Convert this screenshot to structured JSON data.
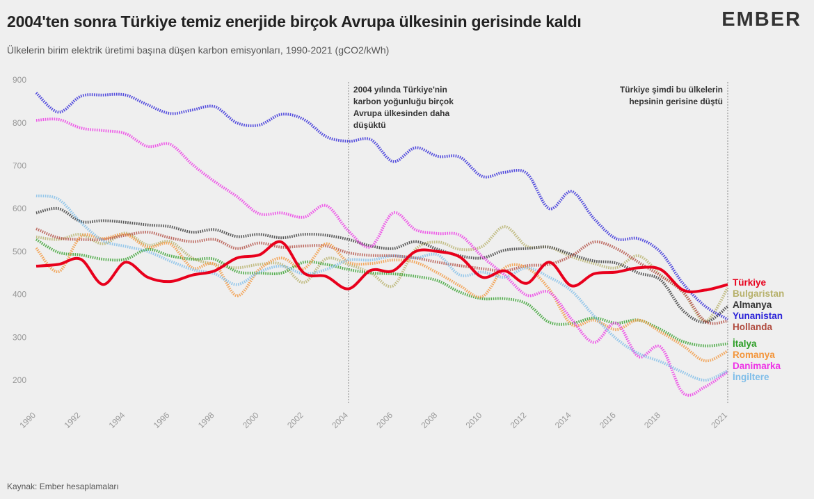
{
  "header": {
    "title": "2004'ten sonra Türkiye temiz enerjide birçok Avrupa ülkesinin gerisinde kaldı",
    "subtitle": "Ülkelerin birim elektrik üretimi başına düşen karbon emisyonları, 1990-2021 (gCO2/kWh)",
    "logo": "EMBER"
  },
  "footer": {
    "source": "Kaynak: Ember hesaplamaları"
  },
  "annotations": {
    "left": [
      "2004 yılında Türkiye'nin",
      "karbon yoğunluğu birçok",
      "Avrupa ülkesinden daha",
      "düşüktü"
    ],
    "right": [
      "Türkiye şimdi bu ülkelerin",
      "hepsinin gerisine düştü"
    ]
  },
  "chart_data": {
    "type": "line",
    "title": "2004'ten sonra Türkiye temiz enerjide birçok Avrupa ülkesinin gerisinde kaldı",
    "ylabel": "gCO2/kWh",
    "xlabel": "",
    "xlim": [
      1990,
      2021
    ],
    "ylim": [
      150,
      900
    ],
    "x_ticks": [
      1990,
      1992,
      1994,
      1996,
      1998,
      2000,
      2002,
      2004,
      2006,
      2008,
      2010,
      2012,
      2014,
      2016,
      2018,
      2021
    ],
    "y_ticks": [
      200,
      300,
      400,
      500,
      600,
      700,
      800,
      900
    ],
    "reference_lines": [
      2004,
      2021
    ],
    "x": [
      1990,
      1991,
      1992,
      1993,
      1994,
      1995,
      1996,
      1997,
      1998,
      1999,
      2000,
      2001,
      2002,
      2003,
      2004,
      2005,
      2006,
      2007,
      2008,
      2009,
      2010,
      2011,
      2012,
      2013,
      2014,
      2015,
      2016,
      2017,
      2018,
      2019,
      2020,
      2021
    ],
    "series": [
      {
        "name": "Türkiye",
        "color": "#e8001c",
        "emphasis": true,
        "values": [
          466,
          470,
          482,
          423,
          475,
          440,
          430,
          445,
          455,
          485,
          492,
          522,
          450,
          442,
          413,
          456,
          455,
          500,
          500,
          487,
          440,
          455,
          426,
          475,
          420,
          448,
          452,
          462,
          458,
          410,
          410,
          423
        ]
      },
      {
        "name": "Bulgaristan",
        "color": "#b6b06a",
        "values": [
          534,
          528,
          540,
          518,
          543,
          515,
          523,
          485,
          470,
          462,
          470,
          470,
          428,
          483,
          470,
          450,
          420,
          505,
          522,
          505,
          512,
          558,
          512,
          510,
          488,
          472,
          462,
          490,
          445,
          405,
          338,
          415
        ]
      },
      {
        "name": "Almanya",
        "color": "#333333",
        "values": [
          590,
          600,
          570,
          572,
          568,
          562,
          558,
          545,
          551,
          535,
          540,
          532,
          540,
          538,
          528,
          513,
          507,
          523,
          505,
          490,
          485,
          503,
          507,
          510,
          493,
          478,
          473,
          450,
          433,
          362,
          335,
          372
        ]
      },
      {
        "name": "Yunanistan",
        "color": "#2a22d8",
        "values": [
          870,
          825,
          862,
          865,
          865,
          842,
          822,
          830,
          838,
          800,
          795,
          820,
          808,
          768,
          757,
          761,
          710,
          742,
          722,
          720,
          675,
          685,
          682,
          600,
          640,
          577,
          530,
          530,
          498,
          425,
          372,
          342
        ]
      },
      {
        "name": "Hollanda",
        "color": "#b04a3e",
        "values": [
          553,
          532,
          528,
          528,
          538,
          545,
          532,
          523,
          528,
          507,
          520,
          510,
          513,
          513,
          497,
          491,
          490,
          485,
          475,
          467,
          460,
          455,
          467,
          470,
          490,
          522,
          507,
          475,
          443,
          405,
          337,
          338
        ]
      },
      {
        "name": "İtalya",
        "color": "#2e9e27",
        "values": [
          528,
          498,
          492,
          482,
          482,
          505,
          490,
          482,
          482,
          453,
          450,
          450,
          475,
          470,
          458,
          450,
          448,
          442,
          432,
          405,
          390,
          390,
          378,
          335,
          332,
          345,
          333,
          340,
          318,
          290,
          280,
          285
        ]
      },
      {
        "name": "Romanya",
        "color": "#f3953a",
        "values": [
          508,
          453,
          535,
          530,
          540,
          510,
          518,
          462,
          470,
          397,
          458,
          485,
          460,
          518,
          475,
          472,
          480,
          475,
          450,
          420,
          395,
          462,
          462,
          412,
          330,
          340,
          318,
          340,
          312,
          280,
          245,
          268
        ]
      },
      {
        "name": "Danimarka",
        "color": "#ee32e6",
        "values": [
          806,
          808,
          788,
          782,
          775,
          745,
          750,
          703,
          663,
          628,
          588,
          590,
          580,
          607,
          548,
          511,
          590,
          551,
          542,
          538,
          488,
          445,
          398,
          405,
          342,
          288,
          333,
          255,
          277,
          170,
          185,
          220
        ]
      },
      {
        "name": "İngiltere",
        "color": "#7ebde9",
        "values": [
          630,
          622,
          568,
          525,
          512,
          500,
          478,
          458,
          448,
          423,
          452,
          466,
          448,
          458,
          480,
          480,
          490,
          485,
          492,
          445,
          452,
          440,
          462,
          440,
          408,
          350,
          297,
          262,
          243,
          218,
          200,
          222
        ]
      }
    ]
  }
}
